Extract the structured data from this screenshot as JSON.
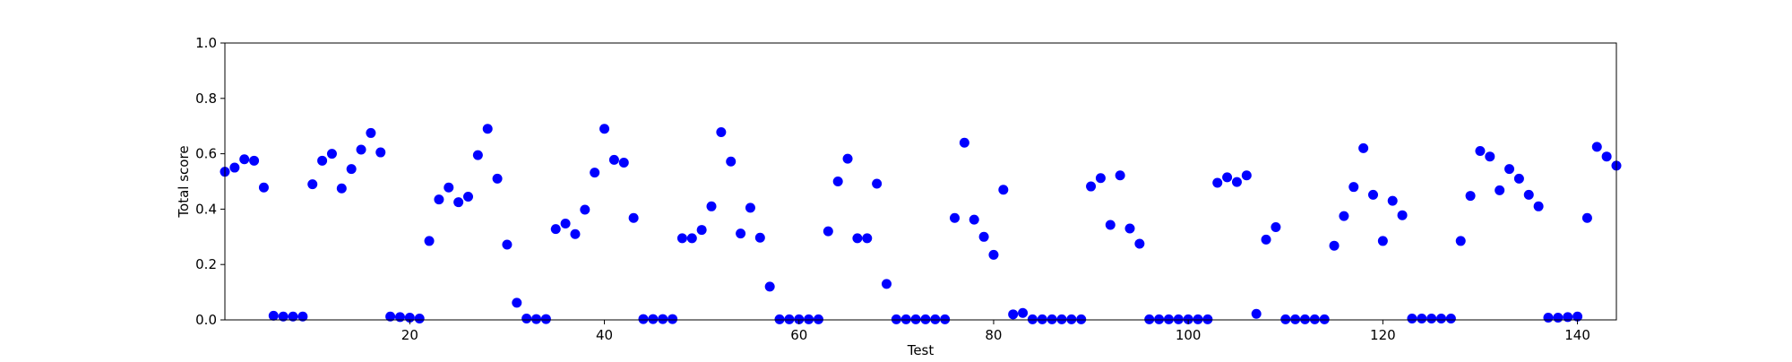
{
  "chart_data": {
    "type": "scatter",
    "title": "",
    "xlabel": "Test",
    "ylabel": "Total score",
    "xlim": [
      1,
      144
    ],
    "ylim": [
      0.0,
      1.0
    ],
    "x_ticks": [
      20,
      40,
      60,
      80,
      100,
      120,
      140
    ],
    "y_ticks": [
      "0.0",
      "0.2",
      "0.4",
      "0.6",
      "0.8",
      "1.0"
    ],
    "grid": false,
    "legend": "none",
    "marker_color": "#0000ff",
    "series": [
      {
        "x": [
          1,
          2,
          3,
          4,
          5,
          6,
          7,
          8,
          9,
          10,
          11,
          12,
          13,
          14,
          15,
          16,
          17,
          18,
          19,
          20,
          21,
          22,
          23,
          24,
          25,
          26,
          27,
          28,
          29,
          30,
          31,
          32,
          33,
          34,
          35,
          36,
          37,
          38,
          39,
          40,
          41,
          42,
          43,
          44,
          45,
          46,
          47,
          48,
          49,
          50,
          51,
          52,
          53,
          54,
          55,
          56,
          57,
          58,
          59,
          60,
          61,
          62,
          63,
          64,
          65,
          66,
          67,
          68,
          69,
          70,
          71,
          72,
          73,
          74,
          75,
          76,
          77,
          78,
          79,
          80,
          81,
          82,
          83,
          84,
          85,
          86,
          87,
          88,
          89,
          90,
          91,
          92,
          93,
          94,
          95,
          96,
          97,
          98,
          99,
          100,
          101,
          102,
          103,
          104,
          105,
          106,
          107,
          108,
          109,
          110,
          111,
          112,
          113,
          114,
          115,
          116,
          117,
          118,
          119,
          120,
          121,
          122,
          123,
          124,
          125,
          126,
          127,
          128,
          129,
          130,
          131,
          132,
          133,
          134,
          135,
          136,
          137,
          138,
          139,
          140,
          141,
          142,
          143,
          144
        ],
        "y": [
          0.535,
          0.55,
          0.58,
          0.575,
          0.478,
          0.015,
          0.012,
          0.012,
          0.012,
          0.49,
          0.575,
          0.6,
          0.475,
          0.545,
          0.615,
          0.675,
          0.605,
          0.012,
          0.01,
          0.008,
          0.005,
          0.285,
          0.435,
          0.478,
          0.425,
          0.445,
          0.595,
          0.69,
          0.51,
          0.272,
          0.062,
          0.005,
          0.003,
          0.003,
          0.328,
          0.348,
          0.31,
          0.398,
          0.532,
          0.69,
          0.578,
          0.568,
          0.368,
          0.003,
          0.003,
          0.003,
          0.003,
          0.295,
          0.295,
          0.325,
          0.41,
          0.678,
          0.572,
          0.312,
          0.405,
          0.297,
          0.12,
          0.002,
          0.002,
          0.002,
          0.002,
          0.002,
          0.32,
          0.5,
          0.582,
          0.295,
          0.295,
          0.492,
          0.13,
          0.002,
          0.002,
          0.002,
          0.002,
          0.002,
          0.002,
          0.368,
          0.64,
          0.362,
          0.3,
          0.235,
          0.47,
          0.02,
          0.025,
          0.002,
          0.002,
          0.002,
          0.002,
          0.002,
          0.002,
          0.482,
          0.512,
          0.343,
          0.522,
          0.33,
          0.275,
          0.002,
          0.002,
          0.002,
          0.002,
          0.002,
          0.002,
          0.002,
          0.495,
          0.515,
          0.498,
          0.522,
          0.022,
          0.29,
          0.335,
          0.002,
          0.002,
          0.002,
          0.002,
          0.002,
          0.268,
          0.375,
          0.48,
          0.62,
          0.452,
          0.285,
          0.43,
          0.378,
          0.005,
          0.005,
          0.005,
          0.005,
          0.005,
          0.285,
          0.448,
          0.61,
          0.59,
          0.468,
          0.545,
          0.51,
          0.452,
          0.41,
          0.008,
          0.008,
          0.01,
          0.012,
          0.368,
          0.625,
          0.59,
          0.557
        ]
      }
    ]
  }
}
